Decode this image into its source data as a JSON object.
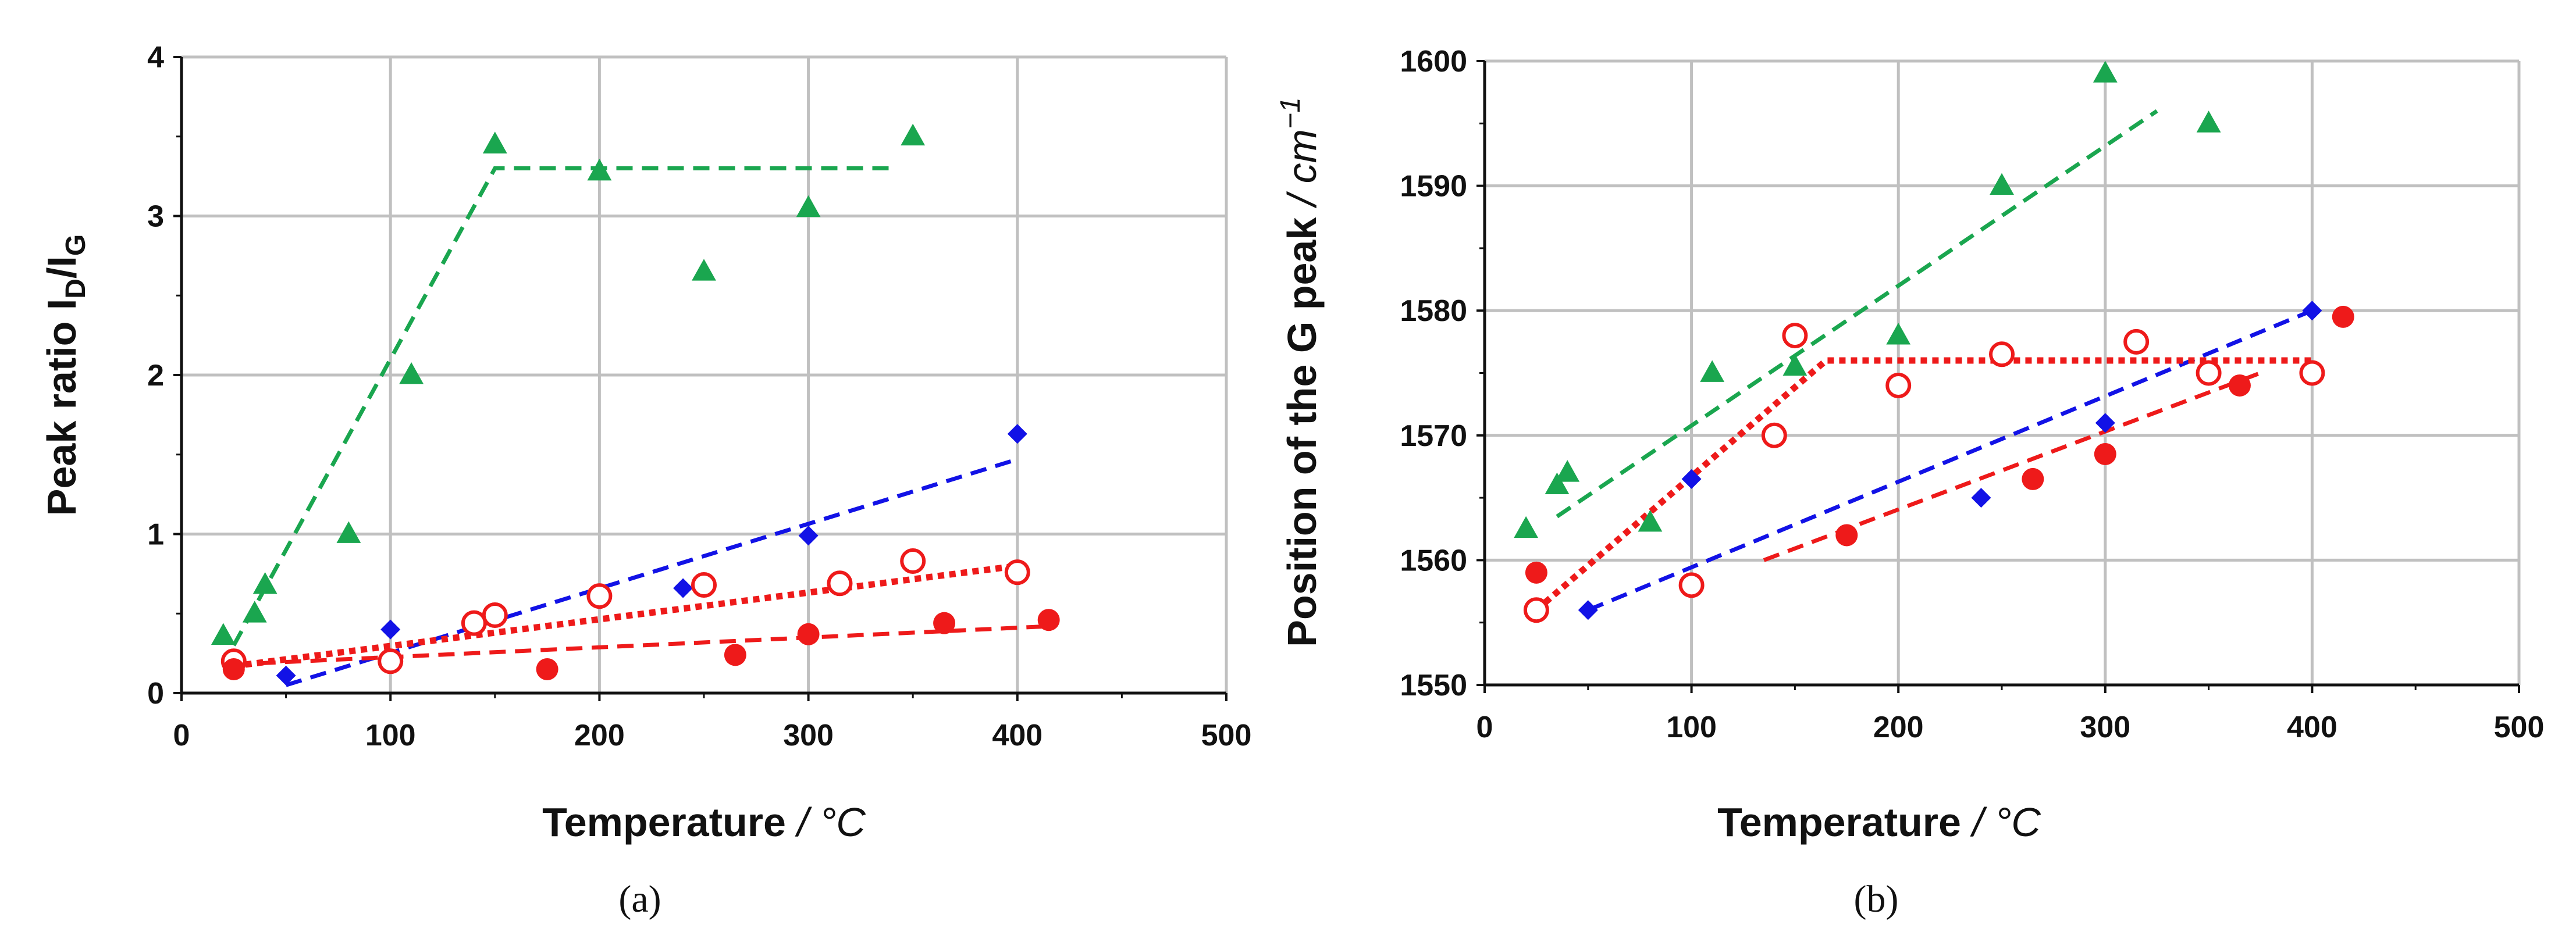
{
  "colors": {
    "green": "#1aa64f",
    "blue": "#1212e6",
    "red": "#ee1a1a",
    "grid": "#c0c0c0",
    "axis": "#111111"
  },
  "chart_data": [
    {
      "id": "a",
      "type": "scatter",
      "caption": "(a)",
      "xlabel": "Temperature",
      "xunit": "/ °C",
      "ylabel": "Peak ratio I",
      "ylabel_sub1": "D",
      "ylabel_mid": "/I",
      "ylabel_sub2": "G",
      "xlim": [
        0,
        500
      ],
      "ylim": [
        0,
        4
      ],
      "xticks": [
        "0",
        "100",
        "200",
        "300",
        "400",
        "500"
      ],
      "yticks": [
        "0",
        "1",
        "2",
        "3",
        "4"
      ],
      "series": [
        {
          "name": "green triangles",
          "marker": "triangle",
          "color": "green",
          "x": [
            20,
            35,
            40,
            80,
            110,
            150,
            200,
            250,
            300,
            350
          ],
          "y": [
            0.36,
            0.5,
            0.68,
            1.0,
            2.0,
            3.45,
            3.28,
            2.65,
            3.05,
            3.5
          ],
          "fit": {
            "style": "dashed",
            "points": [
              [
                25,
                0.3
              ],
              [
                150,
                3.3
              ],
              [
                340,
                3.3
              ]
            ]
          }
        },
        {
          "name": "blue diamonds",
          "marker": "diamond",
          "color": "blue",
          "x": [
            50,
            100,
            240,
            300,
            400
          ],
          "y": [
            0.11,
            0.4,
            0.66,
            0.99,
            1.63
          ],
          "fit": {
            "style": "dashed",
            "points": [
              [
                50,
                0.05
              ],
              [
                400,
                1.47
              ]
            ]
          }
        },
        {
          "name": "red open circles",
          "marker": "circle-open",
          "color": "red",
          "x": [
            25,
            100,
            140,
            150,
            200,
            250,
            315,
            350,
            400
          ],
          "y": [
            0.2,
            0.2,
            0.44,
            0.49,
            0.61,
            0.68,
            0.69,
            0.83,
            0.76
          ],
          "fit": {
            "style": "dotted",
            "points": [
              [
                25,
                0.17
              ],
              [
                400,
                0.8
              ]
            ]
          }
        },
        {
          "name": "red filled circles",
          "marker": "circle-filled",
          "color": "red",
          "x": [
            25,
            175,
            265,
            300,
            365,
            415
          ],
          "y": [
            0.15,
            0.15,
            0.24,
            0.37,
            0.44,
            0.46
          ],
          "fit": {
            "style": "dashed",
            "points": [
              [
                25,
                0.18
              ],
              [
                415,
                0.42
              ]
            ]
          }
        }
      ]
    },
    {
      "id": "b",
      "type": "scatter",
      "caption": "(b)",
      "xlabel": "Temperature",
      "xunit": "/ °C",
      "ylabel": "Position of the G peak",
      "yunit": "/ cm",
      "yunit_sup": "−1",
      "xlim": [
        0,
        500
      ],
      "ylim": [
        1550,
        1600
      ],
      "xticks": [
        "0",
        "100",
        "200",
        "300",
        "400",
        "500"
      ],
      "yticks": [
        "1550",
        "1560",
        "1570",
        "1580",
        "1590",
        "1600"
      ],
      "series": [
        {
          "name": "green triangles",
          "marker": "triangle",
          "color": "green",
          "x": [
            20,
            35,
            40,
            80,
            110,
            150,
            200,
            250,
            300,
            350
          ],
          "y": [
            1562.5,
            1566,
            1567,
            1563,
            1575,
            1575.5,
            1578,
            1590,
            1599,
            1595
          ],
          "fit": {
            "style": "dashed",
            "points": [
              [
                35,
                1563.5
              ],
              [
                325,
                1596
              ]
            ]
          }
        },
        {
          "name": "blue diamonds",
          "marker": "diamond",
          "color": "blue",
          "x": [
            50,
            100,
            240,
            300,
            400
          ],
          "y": [
            1556,
            1566.5,
            1565,
            1571,
            1580
          ],
          "fit": {
            "style": "dashed",
            "points": [
              [
                50,
                1556
              ],
              [
                400,
                1580
              ]
            ]
          }
        },
        {
          "name": "red open circles",
          "marker": "circle-open",
          "color": "red",
          "x": [
            25,
            100,
            140,
            150,
            200,
            250,
            315,
            350,
            400
          ],
          "y": [
            1556,
            1558,
            1570,
            1578,
            1574,
            1576.5,
            1577.5,
            1575,
            1575
          ],
          "fit": {
            "style": "dotted",
            "points": [
              [
                25,
                1556
              ],
              [
                165,
                1576
              ],
              [
                400,
                1576
              ]
            ]
          }
        },
        {
          "name": "red filled circles",
          "marker": "circle-filled",
          "color": "red",
          "x": [
            25,
            175,
            265,
            300,
            365,
            415
          ],
          "y": [
            1559,
            1562,
            1566.5,
            1568.5,
            1574,
            1579.5
          ],
          "fit": {
            "style": "dashed",
            "points": [
              [
                135,
                1560
              ],
              [
                375,
                1575
              ]
            ]
          }
        }
      ]
    }
  ]
}
